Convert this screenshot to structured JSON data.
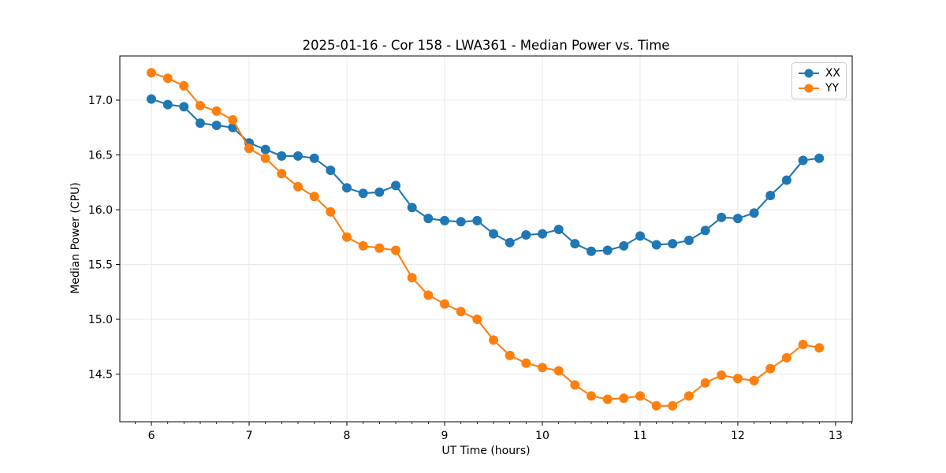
{
  "chart_data": {
    "type": "line",
    "title": "2025-01-16 - Cor 158 - LWA361 - Median Power vs. Time",
    "xlabel": "UT Time (hours)",
    "ylabel": "Median Power (CPU)",
    "xlim": [
      5.677,
      13.17
    ],
    "ylim": [
      14.065,
      17.403
    ],
    "x_ticks": [
      6,
      7,
      8,
      9,
      10,
      11,
      12,
      13
    ],
    "y_ticks": [
      14.5,
      15.0,
      15.5,
      16.0,
      16.5,
      17.0
    ],
    "x_minor_step": 0.16667,
    "grid": true,
    "legend_position": "upper right",
    "colors": {
      "grid": "#e8e8e8",
      "axis": "#000000",
      "background": "#ffffff"
    },
    "x": [
      6.0,
      6.167,
      6.333,
      6.5,
      6.667,
      6.833,
      7.0,
      7.167,
      7.333,
      7.5,
      7.667,
      7.833,
      8.0,
      8.167,
      8.333,
      8.5,
      8.667,
      8.833,
      9.0,
      9.167,
      9.333,
      9.5,
      9.667,
      9.833,
      10.0,
      10.167,
      10.333,
      10.5,
      10.667,
      10.833,
      11.0,
      11.167,
      11.333,
      11.5,
      11.667,
      11.833,
      12.0,
      12.167,
      12.333,
      12.5,
      12.667,
      12.833
    ],
    "series": [
      {
        "name": "XX",
        "color": "#1f77b4",
        "values": [
          17.01,
          16.96,
          16.94,
          16.79,
          16.77,
          16.75,
          16.61,
          16.55,
          16.49,
          16.49,
          16.47,
          16.36,
          16.2,
          16.15,
          16.16,
          16.22,
          16.02,
          15.92,
          15.9,
          15.89,
          15.9,
          15.78,
          15.7,
          15.77,
          15.78,
          15.82,
          15.69,
          15.62,
          15.63,
          15.67,
          15.76,
          15.68,
          15.69,
          15.72,
          15.81,
          15.93,
          15.92,
          15.97,
          16.13,
          16.27,
          16.45,
          16.47
        ]
      },
      {
        "name": "YY",
        "color": "#ff7f0e",
        "values": [
          17.25,
          17.2,
          17.13,
          16.95,
          16.9,
          16.82,
          16.56,
          16.47,
          16.33,
          16.21,
          16.12,
          15.98,
          15.75,
          15.67,
          15.65,
          15.63,
          15.38,
          15.22,
          15.14,
          15.07,
          15.0,
          14.81,
          14.67,
          14.6,
          14.56,
          14.53,
          14.4,
          14.3,
          14.27,
          14.28,
          14.3,
          14.21,
          14.21,
          14.3,
          14.42,
          14.49,
          14.46,
          14.44,
          14.55,
          14.65,
          14.77,
          14.74
        ]
      }
    ]
  }
}
